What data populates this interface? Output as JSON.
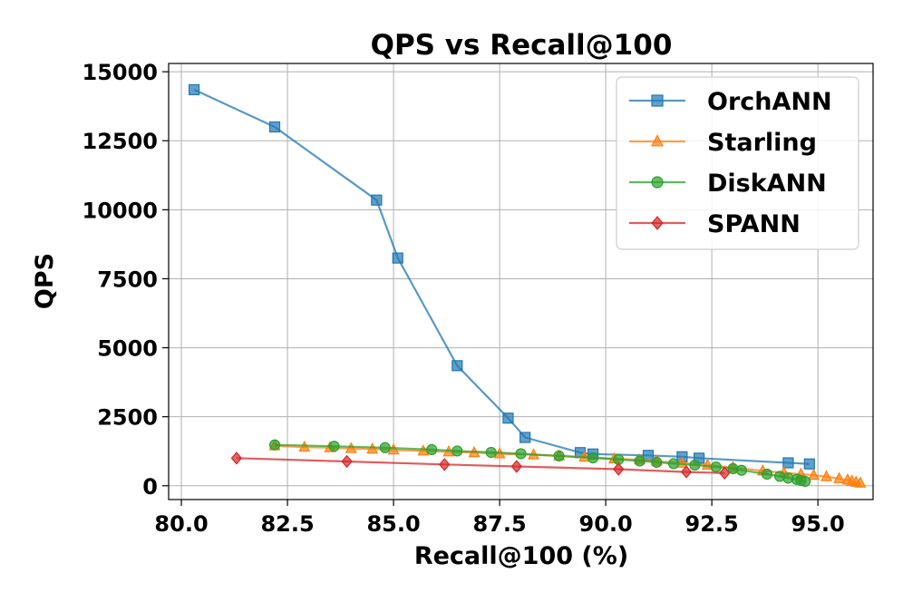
{
  "chart_data": {
    "type": "line",
    "title": "QPS vs Recall@100",
    "xlabel": "Recall@100 (%)",
    "ylabel": "QPS",
    "xlim": [
      79.7,
      96.3
    ],
    "ylim": [
      -500,
      15300
    ],
    "xticks": [
      80.0,
      82.5,
      85.0,
      87.5,
      90.0,
      92.5,
      95.0
    ],
    "xtick_labels": [
      "80.0",
      "82.5",
      "85.0",
      "87.5",
      "90.0",
      "92.5",
      "95.0"
    ],
    "yticks": [
      0,
      2500,
      5000,
      7500,
      10000,
      12500,
      15000
    ],
    "ytick_labels": [
      "0",
      "2500",
      "5000",
      "7500",
      "10000",
      "12500",
      "15000"
    ],
    "grid": true,
    "legend_position": "top-right",
    "series": [
      {
        "name": "OrchANN",
        "color": "#1f77b4",
        "marker": "square",
        "x": [
          80.3,
          82.2,
          84.6,
          85.1,
          86.5,
          87.7,
          88.1,
          89.4,
          89.7,
          91.0,
          91.8,
          92.2,
          94.3,
          94.8
        ],
        "y": [
          14350,
          13000,
          10350,
          8250,
          4350,
          2450,
          1750,
          1200,
          1150,
          1100,
          1050,
          1000,
          830,
          790
        ]
      },
      {
        "name": "Starling",
        "color": "#ff7f0e",
        "marker": "triangle",
        "x": [
          82.2,
          82.9,
          83.5,
          84.0,
          84.5,
          85.0,
          85.7,
          86.3,
          86.9,
          87.5,
          88.3,
          88.9,
          89.5,
          90.2,
          90.8,
          91.2,
          91.8,
          92.4,
          93.0,
          93.7,
          94.2,
          94.6,
          94.9,
          95.2,
          95.5,
          95.7,
          95.8,
          95.9,
          96.0
        ],
        "y": [
          1450,
          1400,
          1380,
          1350,
          1330,
          1300,
          1260,
          1230,
          1200,
          1160,
          1120,
          1080,
          1040,
          980,
          940,
          890,
          820,
          750,
          660,
          540,
          470,
          420,
          380,
          330,
          260,
          210,
          170,
          130,
          100
        ]
      },
      {
        "name": "DiskANN",
        "color": "#2ca02c",
        "marker": "circle",
        "x": [
          82.2,
          83.6,
          84.8,
          85.9,
          86.5,
          87.3,
          88.0,
          88.9,
          89.7,
          90.3,
          90.8,
          91.2,
          91.6,
          92.1,
          92.6,
          93.0,
          93.2,
          93.8,
          94.1,
          94.3,
          94.5,
          94.6,
          94.7
        ],
        "y": [
          1480,
          1430,
          1380,
          1310,
          1260,
          1210,
          1160,
          1080,
          1010,
          950,
          900,
          850,
          800,
          750,
          680,
          620,
          560,
          420,
          340,
          280,
          230,
          190,
          160
        ]
      },
      {
        "name": "SPANN",
        "color": "#d62728",
        "marker": "diamond",
        "x": [
          81.3,
          83.9,
          86.2,
          87.9,
          90.3,
          91.9,
          92.8
        ],
        "y": [
          1000,
          880,
          770,
          700,
          600,
          500,
          460
        ]
      }
    ]
  }
}
